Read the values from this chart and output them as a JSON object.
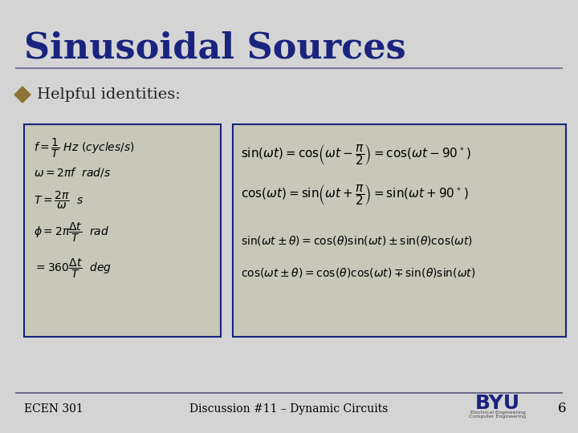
{
  "title": "Sinusoidal Sources",
  "title_color": "#1a237e",
  "bg_color": "#d9d9d9",
  "slide_bg": "#d4d4d4",
  "bullet_color": "#8B7536",
  "bullet_text": "Helpful identities:",
  "footer_left": "ECEN 301",
  "footer_center": "Discussion #11 – Dynamic Circuits",
  "footer_page": "6",
  "box_bg": "#c8c8b8",
  "box_border": "#1a237e",
  "separator_color": "#7a7a9a",
  "left_box_formulas": [
    "$f = \\dfrac{1}{T}\\ Hz\\ (cycles/s)$",
    "$\\omega = 2\\pi f\\ \\ rad/s$",
    "$T = \\dfrac{2\\pi}{\\omega}\\ \\ s$",
    "$\\phi = 2\\pi\\dfrac{\\Delta t}{T}\\ \\ rad$",
    "$= 360\\dfrac{\\Delta t}{T}\\ \\ deg$"
  ],
  "right_box_formulas": [
    "$\\sin(\\omega t) = \\cos\\!\\left(\\omega t - \\dfrac{\\pi}{2}\\right) = \\cos(\\omega t - 90^\\circ)$",
    "$\\cos(\\omega t) = \\sin\\!\\left(\\omega t + \\dfrac{\\pi}{2}\\right) = \\sin(\\omega t + 90^\\circ)$",
    "$\\sin(\\omega t \\pm \\theta) = \\cos(\\theta)\\sin(\\omega t) \\pm \\sin(\\theta)\\cos(\\omega t)$",
    "$\\cos(\\omega t \\pm \\theta) = \\cos(\\theta)\\cos(\\omega t) \\mp \\sin(\\theta)\\sin(\\omega t)$"
  ]
}
